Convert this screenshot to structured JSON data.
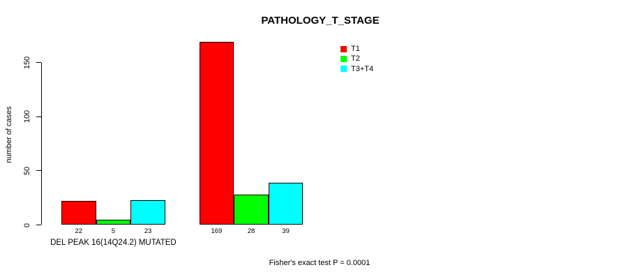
{
  "chart_data": {
    "type": "bar",
    "title": "PATHOLOGY_T_STAGE",
    "ylabel": "number of cases",
    "yticks": [
      0,
      50,
      100,
      150
    ],
    "ylim": [
      0,
      175
    ],
    "grid": false,
    "legend_position": "top-right",
    "series": [
      {
        "name": "T1",
        "color": "#ff0000"
      },
      {
        "name": "T2",
        "color": "#00ff00"
      },
      {
        "name": "T3+T4",
        "color": "#00ffff"
      }
    ],
    "groups": [
      {
        "label": "DEL PEAK 16(14Q24.2) MUTATED",
        "values": [
          22,
          5,
          23
        ]
      },
      {
        "label": "",
        "values": [
          169,
          28,
          39
        ]
      }
    ],
    "annotation": "Fisher's exact test P = 0.0001"
  }
}
